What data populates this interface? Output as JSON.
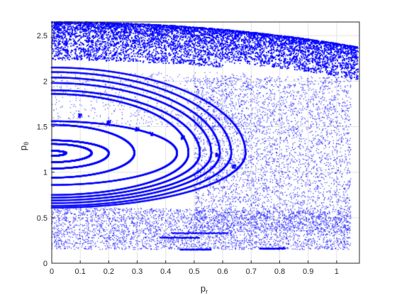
{
  "chart_data": {
    "type": "scatter",
    "title": "",
    "xlabel": "p",
    "xlabel_sub": "r",
    "ylabel": "p",
    "ylabel_sub": "θ",
    "xlim": [
      0,
      1.08
    ],
    "ylim": [
      0,
      2.65
    ],
    "xticks": [
      0,
      0.1,
      0.2,
      0.3,
      0.4,
      0.5,
      0.6,
      0.7,
      0.8,
      0.9,
      1
    ],
    "yticks": [
      0,
      0.5,
      1,
      1.5,
      2,
      2.5
    ],
    "xtick_labels": [
      "0",
      "0.1",
      "0.2",
      "0.3",
      "0.4",
      "0.5",
      "0.6",
      "0.7",
      "0.8",
      "0.9",
      "1"
    ],
    "ytick_labels": [
      "0",
      "0.5",
      "1",
      "1.5",
      "2",
      "2.5"
    ],
    "grid": true,
    "marker_color": "#0000ff",
    "series": [
      {
        "kind": "closed-curves",
        "center_y": 1.21,
        "curves": [
          {
            "pr_max": 0.05,
            "p_min": 1.18,
            "p_max": 1.235
          },
          {
            "pr_max": 0.14,
            "p_min": 1.11,
            "p_max": 1.31
          },
          {
            "pr_max": 0.2,
            "p_min": 1.04,
            "p_max": 1.35
          },
          {
            "pr_max": 0.29,
            "p_min": 0.94,
            "p_max": 1.52
          },
          {
            "pr_max": 0.44,
            "p_min": 0.86,
            "p_max": 1.56
          },
          {
            "pr_max": 0.48,
            "p_min": 0.75,
            "p_max": 1.86
          },
          {
            "pr_max": 0.52,
            "p_min": 0.72,
            "p_max": 1.9
          },
          {
            "pr_max": 0.56,
            "p_min": 0.69,
            "p_max": 1.98
          },
          {
            "pr_max": 0.59,
            "p_min": 0.66,
            "p_max": 2.04
          },
          {
            "pr_max": 0.63,
            "p_min": 0.63,
            "p_max": 2.1
          },
          {
            "pr_max": 0.68,
            "p_min": 0.61,
            "p_max": 2.15
          }
        ]
      },
      {
        "kind": "chaotic-sea",
        "boundary": "pr^2 + (pθ - 0.41)^2 = 2.24^2",
        "inner_p_max": 2.25,
        "outer_p_max": 2.65,
        "pr_max": 1.08
      },
      {
        "kind": "island-chain",
        "points": [
          [
            0.1,
            1.62
          ],
          [
            0.2,
            1.55
          ],
          [
            0.3,
            1.47
          ],
          [
            0.35,
            1.42
          ],
          [
            0.46,
            1.38
          ],
          [
            0.58,
            1.19
          ],
          [
            0.64,
            1.06
          ]
        ]
      }
    ]
  }
}
